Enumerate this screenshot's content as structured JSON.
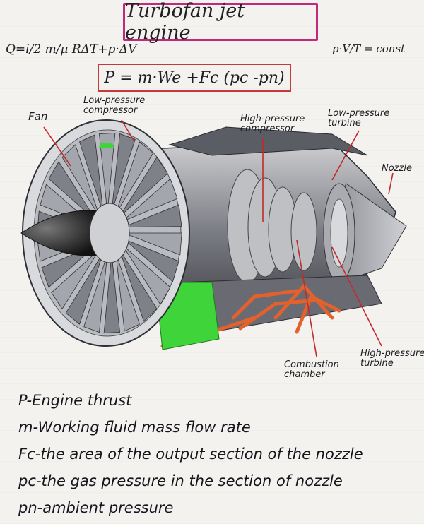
{
  "title": "Turbofan jet engine",
  "formulas": {
    "heat": "Q=i/2 m/μ RΔT+p·ΔV",
    "state": "p·V/T = const",
    "thrust": "P = m·We +Fc (pc -pn)"
  },
  "labels": {
    "fan": "Fan",
    "lpc": [
      "Low-pressure",
      "compressor"
    ],
    "hpc": [
      "High-pressure",
      "compressor"
    ],
    "lpt": [
      "Low-pressure",
      "turbine"
    ],
    "nozzle": "Nozzle",
    "combustion": [
      "Combustion",
      "chamber"
    ],
    "hpt": [
      "High-pressure",
      "turbine"
    ]
  },
  "legend": [
    "P-Engine thrust",
    "m-Working fluid mass flow rate",
    "Fc-the area of the output section of the nozzle",
    "pc-the gas pressure in the section of nozzle",
    "pn-ambient pressure"
  ],
  "colors": {
    "title_border": "#c0297e",
    "formula_border": "#c23a3a",
    "arrow": "#c22a2a",
    "accent_green": "#3fd43a",
    "combustion_orange": "#e2612c"
  }
}
